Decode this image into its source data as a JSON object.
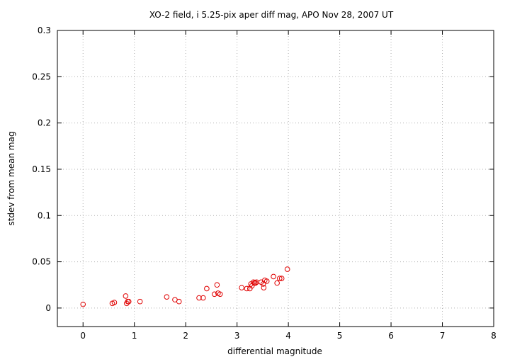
{
  "chart_data": {
    "type": "scatter",
    "title": "XO-2 field, i 5.25-pix aper diff mag, APO Nov 28, 2007 UT",
    "xlabel": "differential magnitude",
    "ylabel": "stdev from mean mag",
    "xlim": [
      -0.5,
      8
    ],
    "ylim": [
      -0.02,
      0.3
    ],
    "xticks": [
      0,
      1,
      2,
      3,
      4,
      5,
      6,
      7,
      8
    ],
    "xtick_labels": [
      "0",
      "1",
      "2",
      "3",
      "4",
      "5",
      "6",
      "7",
      "8"
    ],
    "yticks": [
      0,
      0.05,
      0.1,
      0.15,
      0.2,
      0.25,
      0.3
    ],
    "ytick_labels": [
      "0",
      "0.05",
      "0.1",
      "0.15",
      "0.2",
      "0.25",
      "0.3"
    ],
    "grid": true,
    "marker": "open-circle",
    "color": "#e00000",
    "points": [
      [
        0.0,
        0.004
      ],
      [
        0.57,
        0.005
      ],
      [
        0.61,
        0.006
      ],
      [
        0.83,
        0.013
      ],
      [
        0.85,
        0.005
      ],
      [
        0.87,
        0.007
      ],
      [
        0.89,
        0.007
      ],
      [
        1.11,
        0.007
      ],
      [
        1.63,
        0.012
      ],
      [
        1.79,
        0.009
      ],
      [
        1.87,
        0.007
      ],
      [
        2.26,
        0.011
      ],
      [
        2.34,
        0.011
      ],
      [
        2.41,
        0.021
      ],
      [
        2.56,
        0.015
      ],
      [
        2.61,
        0.025
      ],
      [
        2.63,
        0.016
      ],
      [
        2.67,
        0.015
      ],
      [
        3.09,
        0.022
      ],
      [
        3.19,
        0.021
      ],
      [
        3.25,
        0.021
      ],
      [
        3.27,
        0.026
      ],
      [
        3.29,
        0.024
      ],
      [
        3.32,
        0.028
      ],
      [
        3.34,
        0.027
      ],
      [
        3.36,
        0.027
      ],
      [
        3.38,
        0.028
      ],
      [
        3.47,
        0.028
      ],
      [
        3.51,
        0.026
      ],
      [
        3.52,
        0.022
      ],
      [
        3.54,
        0.03
      ],
      [
        3.58,
        0.029
      ],
      [
        3.71,
        0.034
      ],
      [
        3.78,
        0.027
      ],
      [
        3.83,
        0.032
      ],
      [
        3.87,
        0.032
      ],
      [
        3.98,
        0.042
      ]
    ]
  }
}
